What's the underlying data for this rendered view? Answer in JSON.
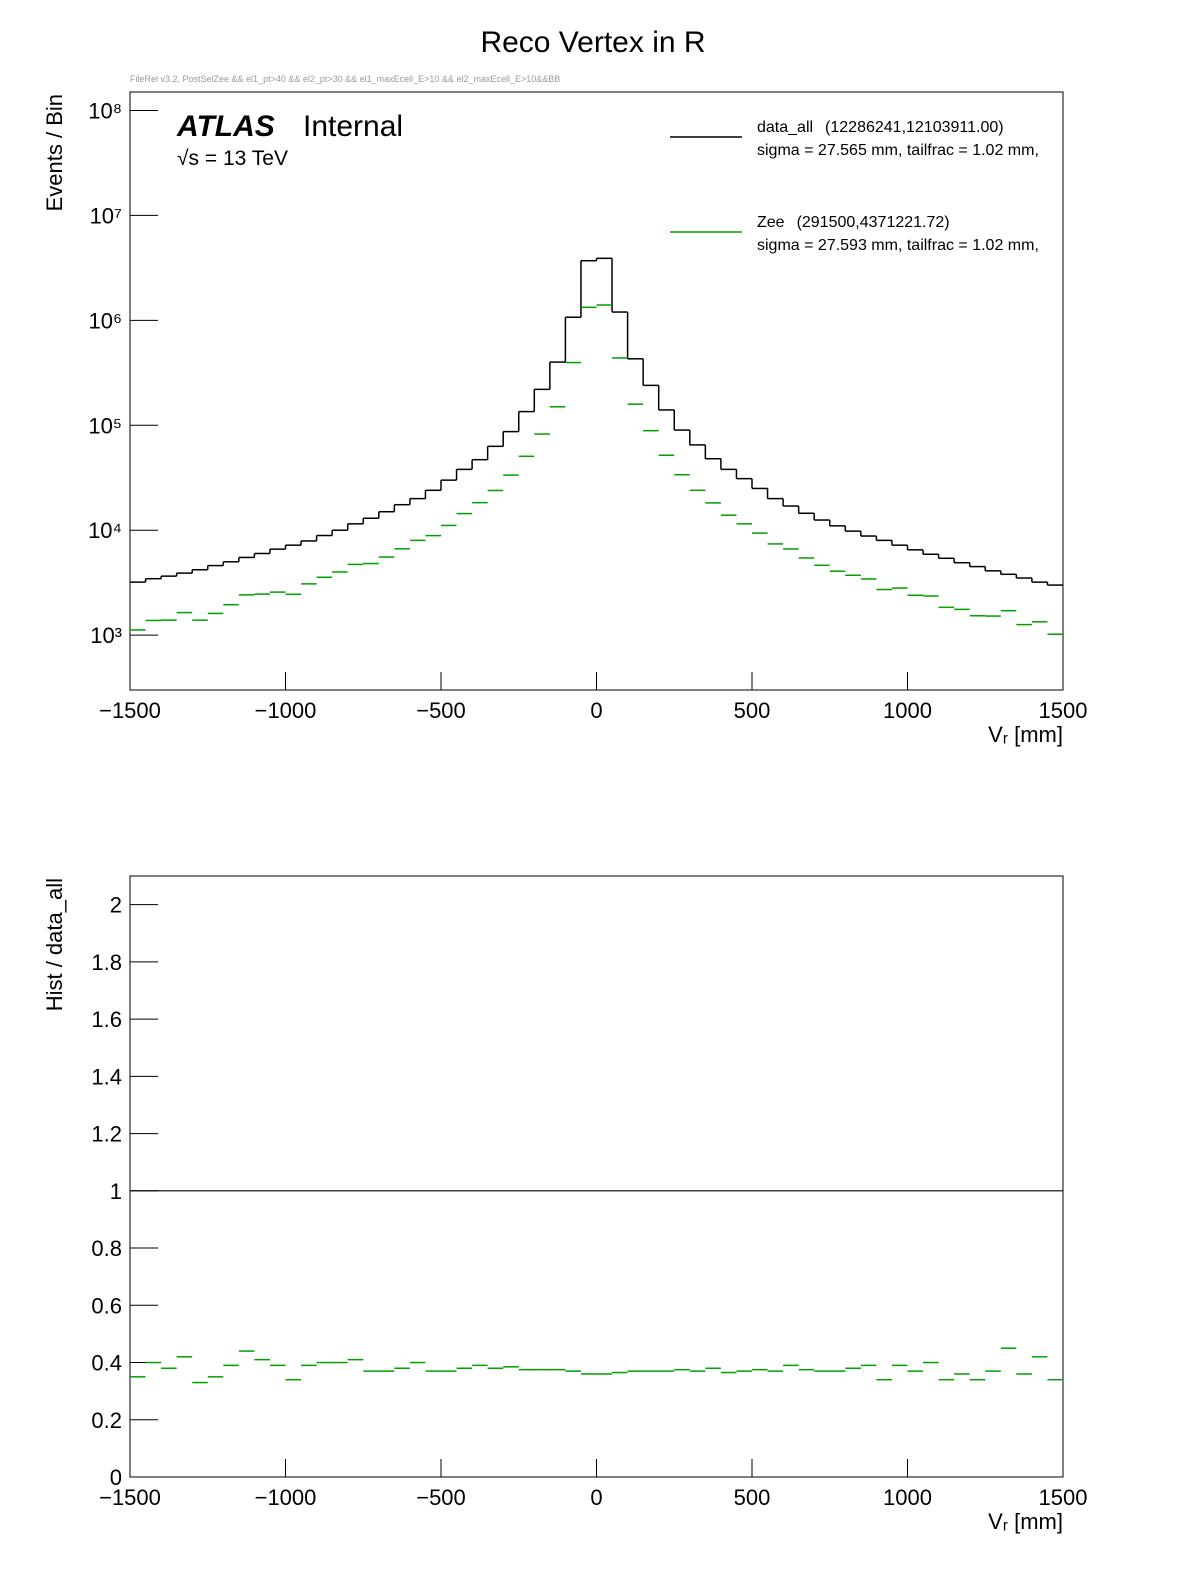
{
  "chart_data": [
    {
      "type": "histogram",
      "title": "Reco Vertex in R",
      "subtitle": "FileRel v3.2, PostSelZee && el1_pt>40 && el2_pt>30 && el1_maxEcell_E>10 && el2_maxEcell_E>10&&BB",
      "annotations": [
        "ATLAS",
        "Internal",
        "√s = 13 TeV"
      ],
      "x_label": "Vᵣ [mm]",
      "y_label": "Events / Bin",
      "log_y": true,
      "legend": "top-right",
      "bins": [
        -1500,
        -1450,
        -1400,
        -1350,
        -1300,
        -1250,
        -1200,
        -1150,
        -1100,
        -1050,
        -1000,
        -950,
        -900,
        -850,
        -800,
        -750,
        -700,
        -650,
        -600,
        -550,
        -500,
        -450,
        -400,
        -350,
        -300,
        -250,
        -200,
        -150,
        -100,
        -50,
        0,
        50,
        100,
        150,
        200,
        250,
        300,
        350,
        400,
        450,
        500,
        550,
        600,
        650,
        700,
        750,
        800,
        850,
        900,
        950,
        1000,
        1050,
        1100,
        1150,
        1200,
        1250,
        1300,
        1350,
        1400,
        1450,
        1500
      ],
      "xlim": [
        -1500,
        1500
      ],
      "xticks": [
        {
          "value": -1500,
          "label": "−1500"
        },
        {
          "value": -1000,
          "label": "−1000"
        },
        {
          "value": -500,
          "label": "−500"
        },
        0,
        500,
        1000,
        1500
      ],
      "ylim": [
        300,
        150000000
      ],
      "yticks": [
        {
          "value": 1000,
          "label": "10³"
        },
        {
          "value": 10000,
          "label": "10⁴"
        },
        {
          "value": 100000,
          "label": "10⁵"
        },
        {
          "value": 1000000,
          "label": "10⁶"
        },
        {
          "value": 10000000,
          "label": "10⁷"
        },
        {
          "value": 100000000,
          "label": "10⁸"
        }
      ],
      "series": [
        {
          "name": "data_all",
          "stats": "(12286241,12103911.00)",
          "fit": "sigma = 27.565 mm, tailfrac = 1.02 mm,",
          "color": "#000000",
          "style": "step",
          "values": [
            3200,
            3450,
            3650,
            3900,
            4200,
            4600,
            5000,
            5500,
            6000,
            6600,
            7200,
            7900,
            8900,
            10000,
            11500,
            13000,
            15000,
            17500,
            20000,
            24000,
            30000,
            38000,
            47000,
            63000,
            87000,
            135000,
            220000,
            400000,
            1070000,
            3700000,
            3900000,
            1200000,
            430000,
            240000,
            140000,
            90000,
            65000,
            48000,
            38000,
            31000,
            25000,
            20000,
            17000,
            14500,
            12500,
            11000,
            9800,
            8800,
            8000,
            7200,
            6500,
            5900,
            5400,
            4900,
            4500,
            4100,
            3800,
            3500,
            3200,
            3000
          ]
        },
        {
          "name": "Zee",
          "stats": "(291500,4371221.72)",
          "fit": "sigma = 27.593 mm, tailfrac = 1.02 mm,",
          "color": "#00a000",
          "style": "points",
          "values": [
            1120,
            1380,
            1390,
            1640,
            1390,
            1610,
            1950,
            2420,
            2460,
            2570,
            2450,
            3080,
            3560,
            4000,
            4720,
            4810,
            5550,
            6650,
            8000,
            8880,
            11100,
            14400,
            18300,
            23900,
            33500,
            50600,
            82500,
            150000,
            396000,
            1330000,
            1400000,
            438000,
            159000,
            88800,
            51800,
            33800,
            24000,
            18200,
            13900,
            11500,
            9380,
            7400,
            6630,
            5440,
            4630,
            4070,
            3720,
            3430,
            2720,
            2810,
            2400,
            2360,
            1840,
            1760,
            1530,
            1520,
            1710,
            1260,
            1340,
            1020
          ]
        }
      ]
    },
    {
      "type": "histogram",
      "x_label": "Vᵣ [mm]",
      "y_label": "Hist / data_all",
      "log_y": false,
      "reference_line": 1,
      "bins": [
        -1500,
        -1450,
        -1400,
        -1350,
        -1300,
        -1250,
        -1200,
        -1150,
        -1100,
        -1050,
        -1000,
        -950,
        -900,
        -850,
        -800,
        -750,
        -700,
        -650,
        -600,
        -550,
        -500,
        -450,
        -400,
        -350,
        -300,
        -250,
        -200,
        -150,
        -100,
        -50,
        0,
        50,
        100,
        150,
        200,
        250,
        300,
        350,
        400,
        450,
        500,
        550,
        600,
        650,
        700,
        750,
        800,
        850,
        900,
        950,
        1000,
        1050,
        1100,
        1150,
        1200,
        1250,
        1300,
        1350,
        1400,
        1450,
        1500
      ],
      "xlim": [
        -1500,
        1500
      ],
      "xticks": [
        {
          "value": -1500,
          "label": "−1500"
        },
        {
          "value": -1000,
          "label": "−1000"
        },
        {
          "value": -500,
          "label": "−500"
        },
        0,
        500,
        1000,
        1500
      ],
      "ylim": [
        0,
        2.1
      ],
      "yticks": [
        0,
        0.2,
        0.4,
        0.6,
        0.8,
        1,
        1.2,
        1.4,
        1.6,
        1.8,
        2
      ],
      "series": [
        {
          "color": "#00a000",
          "style": "points",
          "values": [
            0.35,
            0.4,
            0.38,
            0.42,
            0.33,
            0.35,
            0.39,
            0.44,
            0.41,
            0.39,
            0.34,
            0.39,
            0.4,
            0.4,
            0.41,
            0.37,
            0.37,
            0.38,
            0.4,
            0.37,
            0.37,
            0.38,
            0.39,
            0.38,
            0.385,
            0.375,
            0.375,
            0.375,
            0.37,
            0.36,
            0.36,
            0.365,
            0.37,
            0.37,
            0.37,
            0.375,
            0.37,
            0.38,
            0.365,
            0.37,
            0.375,
            0.37,
            0.39,
            0.375,
            0.37,
            0.37,
            0.38,
            0.39,
            0.34,
            0.39,
            0.37,
            0.4,
            0.34,
            0.36,
            0.34,
            0.37,
            0.45,
            0.36,
            0.42,
            0.34
          ]
        }
      ]
    }
  ]
}
